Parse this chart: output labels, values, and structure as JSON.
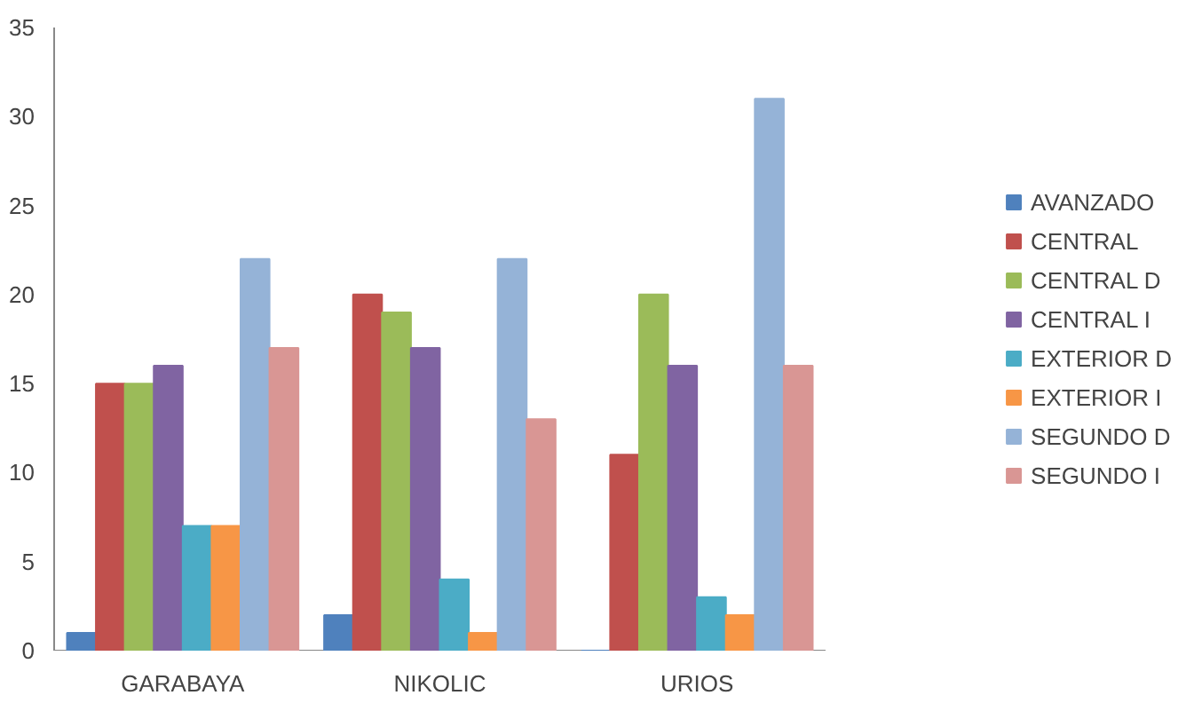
{
  "chart_data": {
    "type": "bar",
    "categories": [
      "GARABAYA",
      "NIKOLIC",
      "URIOS"
    ],
    "series": [
      {
        "name": "AVANZADO",
        "color": "#4f81bd",
        "values": [
          1,
          2,
          0
        ]
      },
      {
        "name": "CENTRAL",
        "color": "#c0504d",
        "values": [
          15,
          20,
          11
        ]
      },
      {
        "name": "CENTRAL D",
        "color": "#9bbb59",
        "values": [
          15,
          19,
          20
        ]
      },
      {
        "name": "CENTRAL I",
        "color": "#8064a2",
        "values": [
          16,
          17,
          16
        ]
      },
      {
        "name": "EXTERIOR D",
        "color": "#4bacc6",
        "values": [
          7,
          4,
          3
        ]
      },
      {
        "name": "EXTERIOR I",
        "color": "#f79646",
        "values": [
          7,
          1,
          2
        ]
      },
      {
        "name": "SEGUNDO D",
        "color": "#95b3d7",
        "values": [
          22,
          22,
          31
        ]
      },
      {
        "name": "SEGUNDO I",
        "color": "#d99694",
        "values": [
          17,
          13,
          16
        ]
      }
    ],
    "ylim": [
      0,
      35
    ],
    "yticks": [
      0,
      5,
      10,
      15,
      20,
      25,
      30,
      35
    ],
    "grid": false,
    "legend": "right"
  }
}
